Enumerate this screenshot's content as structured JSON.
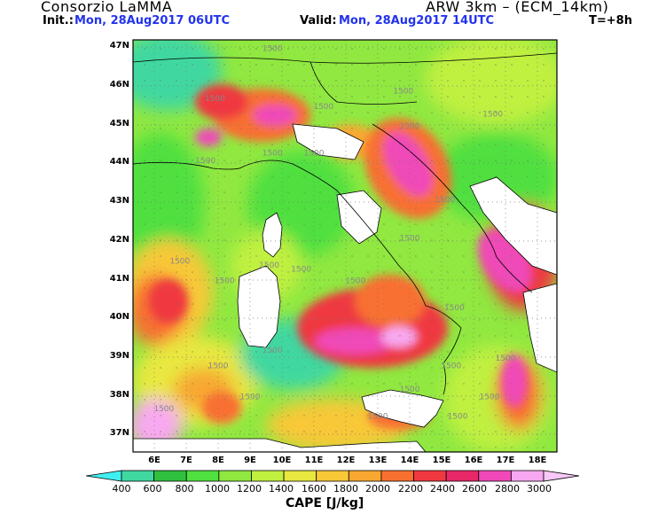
{
  "header": {
    "org": "Consorzio LaMMA",
    "model": "ARW 3km – (ECM_14km)",
    "init_label": "Init.:",
    "init_value": "Mon, 28Aug2017 06UTC",
    "valid_label": "Valid:",
    "valid_value": "Mon, 28Aug2017 14UTC",
    "lead": "T=+8h"
  },
  "axes": {
    "lat_labels": [
      "47N",
      "46N",
      "45N",
      "44N",
      "43N",
      "42N",
      "41N",
      "40N",
      "39N",
      "38N",
      "37N"
    ],
    "lon_labels": [
      "6E",
      "7E",
      "8E",
      "9E",
      "10E",
      "11E",
      "12E",
      "13E",
      "14E",
      "15E",
      "16E",
      "17E",
      "18E"
    ]
  },
  "contour_labels": [
    {
      "text": "1500",
      "lon": 9.7,
      "lat": 46.9
    },
    {
      "text": "1500",
      "lon": 13.8,
      "lat": 45.8
    },
    {
      "text": "1500",
      "lon": 7.9,
      "lat": 45.6
    },
    {
      "text": "1500",
      "lon": 11.3,
      "lat": 45.4
    },
    {
      "text": "1500",
      "lon": 16.6,
      "lat": 45.2
    },
    {
      "text": "1500",
      "lon": 14.0,
      "lat": 44.9
    },
    {
      "text": "1500",
      "lon": 7.6,
      "lat": 44.0
    },
    {
      "text": "1500",
      "lon": 9.7,
      "lat": 44.2
    },
    {
      "text": "1500",
      "lon": 11.0,
      "lat": 44.2
    },
    {
      "text": "1500",
      "lon": 15.1,
      "lat": 43.0
    },
    {
      "text": "1500",
      "lon": 14.0,
      "lat": 42.0
    },
    {
      "text": "1500",
      "lon": 6.8,
      "lat": 41.4
    },
    {
      "text": "1500",
      "lon": 9.6,
      "lat": 41.3
    },
    {
      "text": "1500",
      "lon": 10.6,
      "lat": 41.2
    },
    {
      "text": "1500",
      "lon": 12.3,
      "lat": 40.9
    },
    {
      "text": "1500",
      "lon": 8.2,
      "lat": 40.9
    },
    {
      "text": "1500",
      "lon": 15.4,
      "lat": 40.2
    },
    {
      "text": "1500",
      "lon": 9.7,
      "lat": 39.1
    },
    {
      "text": "1500",
      "lon": 8.0,
      "lat": 38.7
    },
    {
      "text": "1500",
      "lon": 17.0,
      "lat": 38.9
    },
    {
      "text": "1500",
      "lon": 15.3,
      "lat": 38.7
    },
    {
      "text": "1500",
      "lon": 9.0,
      "lat": 37.9
    },
    {
      "text": "1500",
      "lon": 14.0,
      "lat": 38.1
    },
    {
      "text": "1500",
      "lon": 16.5,
      "lat": 37.9
    },
    {
      "text": "1500",
      "lon": 6.3,
      "lat": 37.6
    },
    {
      "text": "1500",
      "lon": 13.0,
      "lat": 37.4
    },
    {
      "text": "1500",
      "lon": 15.5,
      "lat": 37.4
    }
  ],
  "colorbar": {
    "title": "CAPE [J/kg]",
    "levels": [
      "400",
      "600",
      "800",
      "1000",
      "1200",
      "1400",
      "1600",
      "1800",
      "2000",
      "2200",
      "2400",
      "2600",
      "2800",
      "3000"
    ],
    "colors": [
      "#40f0f0",
      "#40d8a0",
      "#30c040",
      "#50e040",
      "#90e840",
      "#c0f040",
      "#e8e840",
      "#f8c838",
      "#f8a830",
      "#f87030",
      "#f03840",
      "#e82868",
      "#f048b8",
      "#f8a8f0",
      "#f8c8f8"
    ]
  }
}
